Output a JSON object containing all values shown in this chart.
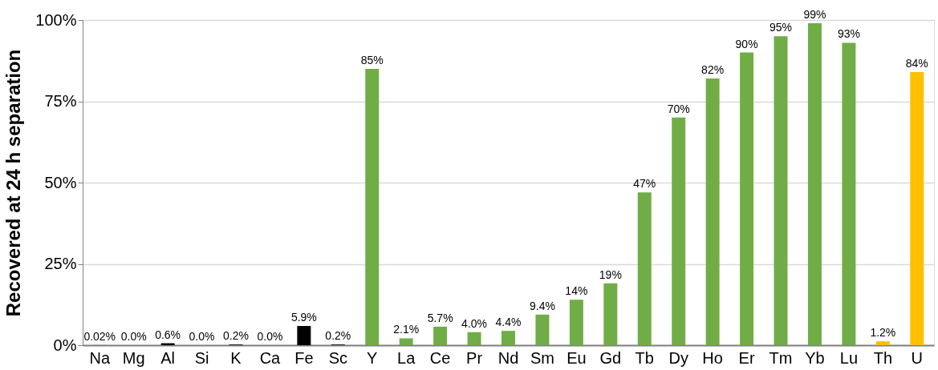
{
  "chart_data": {
    "type": "bar",
    "ylabel": "Recovered at 24 h separation",
    "categories": [
      "Na",
      "Mg",
      "Al",
      "Si",
      "K",
      "Ca",
      "Fe",
      "Sc",
      "Y",
      "La",
      "Ce",
      "Pr",
      "Nd",
      "Sm",
      "Eu",
      "Gd",
      "Tb",
      "Dy",
      "Ho",
      "Er",
      "Tm",
      "Yb",
      "Lu",
      "Th",
      "U"
    ],
    "values": [
      0.02,
      0.0,
      0.6,
      0.0,
      0.2,
      0.0,
      5.9,
      0.2,
      85,
      2.1,
      5.7,
      4.0,
      4.4,
      9.4,
      14,
      19,
      47,
      70,
      82,
      90,
      95,
      99,
      93,
      1.2,
      84
    ],
    "colors": [
      "#000000",
      "#000000",
      "#000000",
      "#000000",
      "#000000",
      "#000000",
      "#000000",
      "#000000",
      "#70ad47",
      "#70ad47",
      "#70ad47",
      "#70ad47",
      "#70ad47",
      "#70ad47",
      "#70ad47",
      "#70ad47",
      "#70ad47",
      "#70ad47",
      "#70ad47",
      "#70ad47",
      "#70ad47",
      "#70ad47",
      "#70ad47",
      "#ffc000",
      "#ffc000"
    ],
    "value_labels": [
      "0.02%",
      "0.0%",
      "0.6%",
      "0.0%",
      "0.2%",
      "0.0%",
      "5.9%",
      "0.2%",
      "85%",
      "2.1%",
      "5.7%",
      "4.0%",
      "4.4%",
      "9.4%",
      "14%",
      "19%",
      "47%",
      "70%",
      "82%",
      "90%",
      "95%",
      "99%",
      "93%",
      "1.2%",
      "84%"
    ],
    "ylim": [
      0,
      100
    ],
    "yticks": [
      {
        "value": 0,
        "label": "0%"
      },
      {
        "value": 25,
        "label": "25%"
      },
      {
        "value": 50,
        "label": "50%"
      },
      {
        "value": 75,
        "label": "75%"
      },
      {
        "value": 100,
        "label": "100%"
      }
    ],
    "grid": "y"
  }
}
